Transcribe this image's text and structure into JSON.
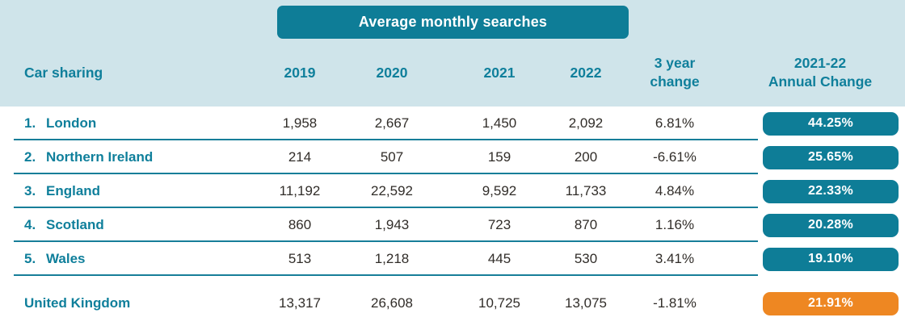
{
  "banner": {
    "label": "Average monthly searches"
  },
  "header": {
    "row_label": "Car sharing",
    "years": [
      "2019",
      "2020",
      "2021",
      "2022"
    ],
    "change_line1": "3 year",
    "change_line2": "change",
    "annual_line1": "2021-22",
    "annual_line2": "Annual Change"
  },
  "rows": [
    {
      "rank": "1.",
      "name": "London",
      "y2019": "1,958",
      "y2020": "2,667",
      "y2021": "1,450",
      "y2022": "2,092",
      "change": "6.81%",
      "annual": "44.25%"
    },
    {
      "rank": "2.",
      "name": "Northern Ireland",
      "y2019": "214",
      "y2020": "507",
      "y2021": "159",
      "y2022": "200",
      "change": "-6.61%",
      "annual": "25.65%"
    },
    {
      "rank": "3.",
      "name": "England",
      "y2019": "11,192",
      "y2020": "22,592",
      "y2021": "9,592",
      "y2022": "11,733",
      "change": "4.84%",
      "annual": "22.33%"
    },
    {
      "rank": "4.",
      "name": "Scotland",
      "y2019": "860",
      "y2020": "1,943",
      "y2021": "723",
      "y2022": "870",
      "change": "1.16%",
      "annual": "20.28%"
    },
    {
      "rank": "5.",
      "name": "Wales",
      "y2019": "513",
      "y2020": "1,218",
      "y2021": "445",
      "y2022": "530",
      "change": "3.41%",
      "annual": "19.10%"
    }
  ],
  "summary": {
    "name": "United Kingdom",
    "y2019": "13,317",
    "y2020": "26,608",
    "y2021": "10,725",
    "y2022": "13,075",
    "change": "-1.81%",
    "annual": "21.91%"
  },
  "colors": {
    "teal": "#0e7d97",
    "teal_text": "#0f7f9b",
    "light_blue_bg": "#cfe4ea",
    "orange": "#ee8722",
    "dark_text": "#312d29",
    "row_bg": "#ffffff"
  },
  "chart_data": {
    "type": "table",
    "title": "Average monthly searches",
    "row_label_header": "Car sharing",
    "categories": [
      "2019",
      "2020",
      "2021",
      "2022"
    ],
    "series": [
      {
        "name": "London",
        "rank": 1,
        "values": [
          1958,
          2667,
          1450,
          2092
        ],
        "three_year_change_pct": 6.81,
        "annual_change_2021_22_pct": 44.25
      },
      {
        "name": "Northern Ireland",
        "rank": 2,
        "values": [
          214,
          507,
          159,
          200
        ],
        "three_year_change_pct": -6.61,
        "annual_change_2021_22_pct": 25.65
      },
      {
        "name": "England",
        "rank": 3,
        "values": [
          11192,
          22592,
          9592,
          11733
        ],
        "three_year_change_pct": 4.84,
        "annual_change_2021_22_pct": 22.33
      },
      {
        "name": "Scotland",
        "rank": 4,
        "values": [
          860,
          1943,
          723,
          870
        ],
        "three_year_change_pct": 1.16,
        "annual_change_2021_22_pct": 20.28
      },
      {
        "name": "Wales",
        "rank": 5,
        "values": [
          513,
          1218,
          445,
          530
        ],
        "three_year_change_pct": 3.41,
        "annual_change_2021_22_pct": 19.1
      },
      {
        "name": "United Kingdom",
        "values": [
          13317,
          26608,
          10725,
          13075
        ],
        "three_year_change_pct": -1.81,
        "annual_change_2021_22_pct": 21.91
      }
    ],
    "legend_position": "none",
    "notes": "Highlight pills in last column are teal for regions, orange for United Kingdom total"
  }
}
